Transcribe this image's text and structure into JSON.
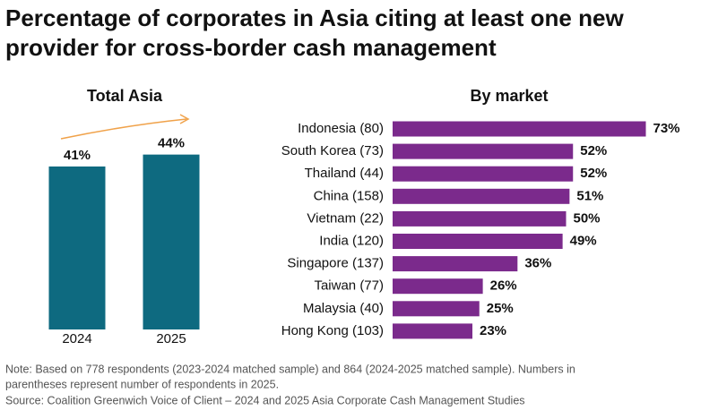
{
  "title": [
    "Percentage of corporates in Asia citing at least one new",
    "provider for cross-border cash management"
  ],
  "chart_data": [
    {
      "type": "bar",
      "title": "Total Asia",
      "categories": [
        "2024",
        "2025"
      ],
      "values": [
        41,
        44
      ],
      "value_labels": [
        "41%",
        "44%"
      ],
      "color": "#0e6a80"
    },
    {
      "type": "barh",
      "title": "By market",
      "categories": [
        "Indonesia (80)",
        "South Korea (73)",
        "Thailand (44)",
        "China (158)",
        "Vietnam  (22)",
        "India (120)",
        "Singapore (137)",
        "Taiwan (77)",
        "Malaysia (40)",
        "Hong Kong (103)"
      ],
      "values": [
        73,
        52,
        52,
        51,
        50,
        49,
        36,
        26,
        25,
        23
      ],
      "value_labels": [
        "73%",
        "52%",
        "52%",
        "51%",
        "50%",
        "49%",
        "36%",
        "26%",
        "25%",
        "23%"
      ],
      "color": "#7b2a8c"
    }
  ],
  "notes": [
    "Note: Based on 778 respondents (2023-2024 matched sample) and 864 (2024-2025 matched sample). Numbers in",
    "parentheses represent number of respondents in 2025.",
    "Source: Coalition Greenwich Voice of Client – 2024 and 2025 Asia Corporate Cash Management Studies"
  ]
}
